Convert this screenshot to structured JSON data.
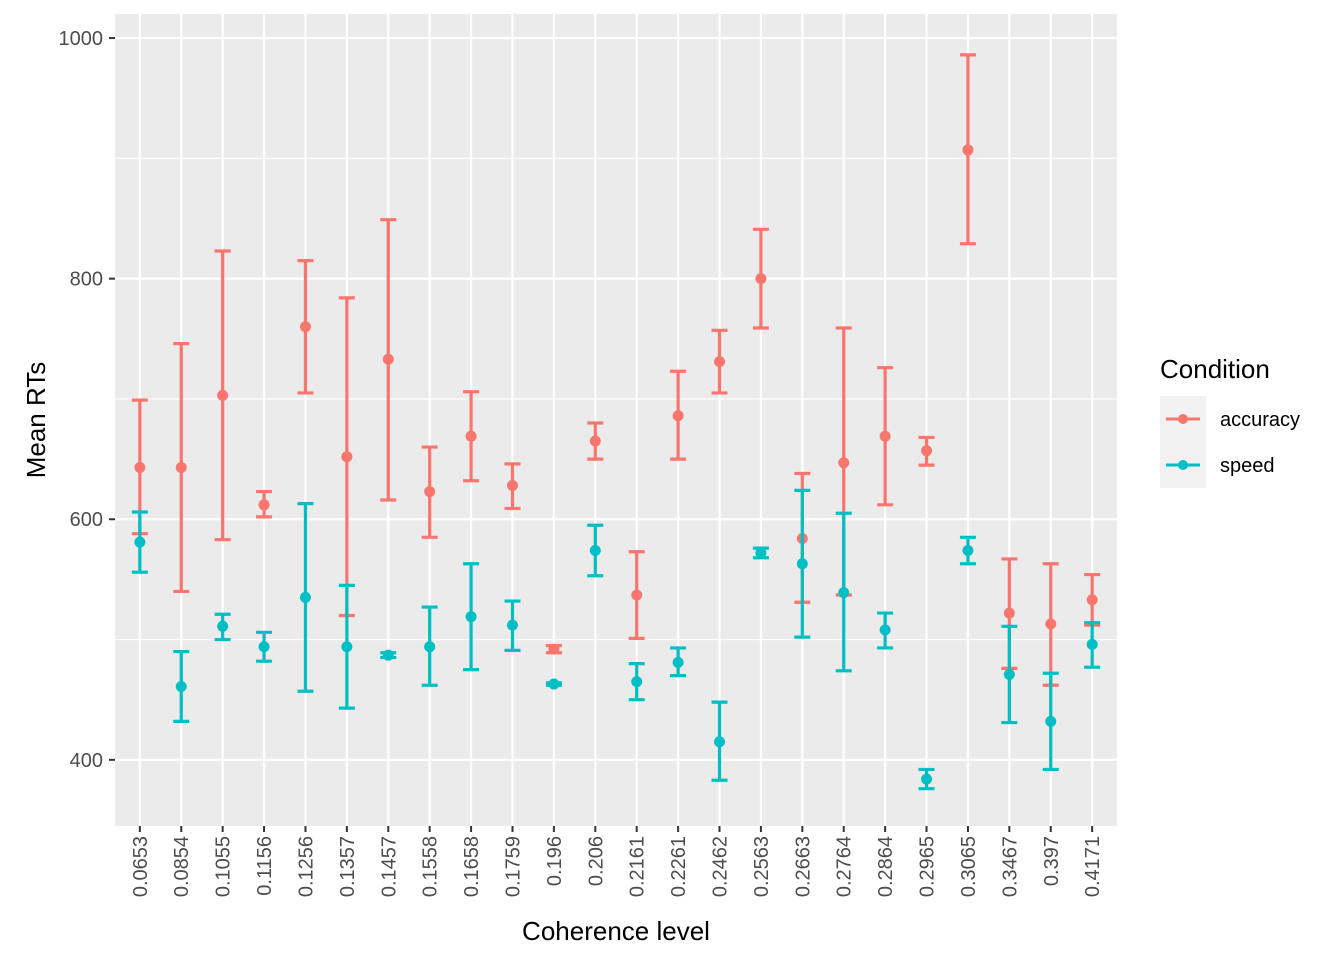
{
  "colors": {
    "accuracy": "#F8766D",
    "speed": "#00BFC4",
    "panel": "#EBEBEB",
    "grid": "#FFFFFF"
  },
  "chart_data": {
    "type": "errorbar",
    "title": "",
    "xlabel": "Coherence level",
    "ylabel": "Mean RTs",
    "ylim": [
      345,
      1020
    ],
    "yticks": [
      400,
      600,
      800,
      1000
    ],
    "grid": true,
    "legend_title": "Condition",
    "legend_position": "right",
    "categories": [
      "0.0653",
      "0.0854",
      "0.1055",
      "0.1156",
      "0.1256",
      "0.1357",
      "0.1457",
      "0.1558",
      "0.1658",
      "0.1759",
      "0.196",
      "0.206",
      "0.2161",
      "0.2261",
      "0.2462",
      "0.2563",
      "0.2663",
      "0.2764",
      "0.2864",
      "0.2965",
      "0.3065",
      "0.3467",
      "0.397",
      "0.4171"
    ],
    "series": [
      {
        "name": "accuracy",
        "mean": [
          643,
          643,
          703,
          612,
          760,
          652,
          733,
          623,
          669,
          628,
          492,
          665,
          537,
          686,
          731,
          800,
          584,
          647,
          669,
          657,
          907,
          522,
          513,
          533
        ],
        "lower": [
          588,
          540,
          583,
          602,
          705,
          520,
          616,
          585,
          632,
          609,
          489,
          650,
          501,
          650,
          705,
          759,
          531,
          537,
          612,
          645,
          829,
          476,
          462,
          512
        ],
        "upper": [
          699,
          746,
          823,
          623,
          815,
          784,
          849,
          660,
          706,
          646,
          495,
          680,
          573,
          723,
          757,
          841,
          638,
          759,
          726,
          668,
          986,
          567,
          563,
          554
        ]
      },
      {
        "name": "speed",
        "mean": [
          581,
          461,
          511,
          494,
          535,
          494,
          487,
          494,
          519,
          512,
          463,
          574,
          465,
          481,
          415,
          572,
          563,
          539,
          508,
          384,
          574,
          471,
          432,
          496
        ],
        "lower": [
          556,
          432,
          500,
          482,
          457,
          443,
          485,
          462,
          475,
          491,
          462,
          553,
          450,
          470,
          383,
          568,
          502,
          474,
          493,
          376,
          563,
          431,
          392,
          477
        ],
        "upper": [
          606,
          490,
          521,
          506,
          613,
          545,
          489,
          527,
          563,
          532,
          464,
          595,
          480,
          493,
          448,
          576,
          624,
          605,
          522,
          392,
          585,
          511,
          472,
          514
        ]
      }
    ]
  }
}
